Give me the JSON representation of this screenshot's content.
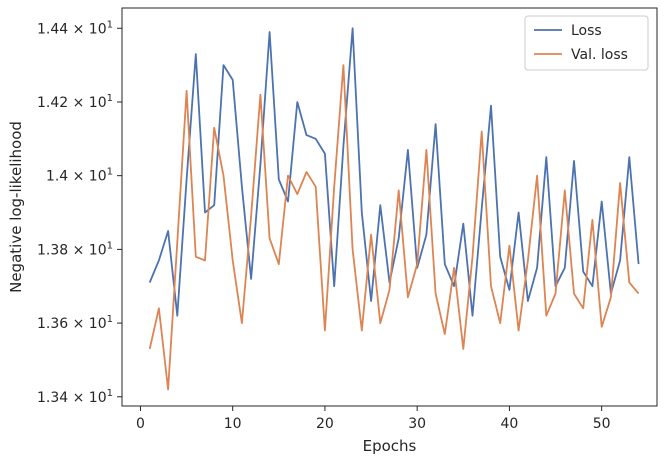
{
  "chart_data": {
    "type": "line",
    "title": "",
    "xlabel": "Epochs",
    "ylabel": "Negative log-likelihood",
    "xlim": [
      -2,
      56
    ],
    "ylim": [
      13.375,
      14.455
    ],
    "grid": false,
    "legend_position": "top-right",
    "x_ticks": [
      0,
      10,
      20,
      30,
      40,
      50
    ],
    "y_ticks": [
      {
        "value": 13.4,
        "mantissa": "1.34",
        "exponent": "1"
      },
      {
        "value": 13.6,
        "mantissa": "1.36",
        "exponent": "1"
      },
      {
        "value": 13.8,
        "mantissa": "1.38",
        "exponent": "1"
      },
      {
        "value": 14.0,
        "mantissa": "1.4",
        "exponent": "1"
      },
      {
        "value": 14.2,
        "mantissa": "1.42",
        "exponent": "1"
      },
      {
        "value": 14.4,
        "mantissa": "1.44",
        "exponent": "1"
      }
    ],
    "x": [
      1,
      2,
      3,
      4,
      5,
      6,
      7,
      8,
      9,
      10,
      11,
      12,
      13,
      14,
      15,
      16,
      17,
      18,
      19,
      20,
      21,
      22,
      23,
      24,
      25,
      26,
      27,
      28,
      29,
      30,
      31,
      32,
      33,
      34,
      35,
      36,
      37,
      38,
      39,
      40,
      41,
      42,
      43,
      44,
      45,
      46,
      47,
      48,
      49,
      50,
      51,
      52,
      53,
      54
    ],
    "series": [
      {
        "name": "Loss",
        "color": "#4c72b0",
        "values": [
          13.71,
          13.77,
          13.85,
          13.62,
          13.99,
          14.33,
          13.9,
          13.92,
          14.3,
          14.26,
          13.97,
          13.72,
          14.03,
          14.39,
          13.99,
          13.93,
          14.2,
          14.11,
          14.1,
          14.06,
          13.7,
          14.08,
          14.4,
          13.9,
          13.66,
          13.92,
          13.71,
          13.83,
          14.07,
          13.75,
          13.84,
          14.14,
          13.76,
          13.7,
          13.87,
          13.62,
          13.91,
          14.19,
          13.78,
          13.69,
          13.9,
          13.66,
          13.75,
          14.05,
          13.7,
          13.75,
          14.04,
          13.74,
          13.7,
          13.93,
          13.68,
          13.77,
          14.05,
          13.76
        ]
      },
      {
        "name": "Val. loss",
        "color": "#dd8452",
        "values": [
          13.53,
          13.64,
          13.42,
          13.82,
          14.23,
          13.78,
          13.77,
          14.13,
          14.0,
          13.77,
          13.6,
          13.89,
          14.22,
          13.83,
          13.76,
          14.0,
          13.95,
          14.01,
          13.97,
          13.58,
          13.97,
          14.3,
          13.8,
          13.58,
          13.84,
          13.6,
          13.69,
          13.96,
          13.67,
          13.76,
          14.07,
          13.68,
          13.57,
          13.75,
          13.53,
          13.78,
          14.12,
          13.7,
          13.6,
          13.81,
          13.58,
          13.77,
          14.0,
          13.62,
          13.68,
          13.96,
          13.68,
          13.64,
          13.88,
          13.59,
          13.67,
          13.98,
          13.71,
          13.68
        ]
      }
    ]
  }
}
